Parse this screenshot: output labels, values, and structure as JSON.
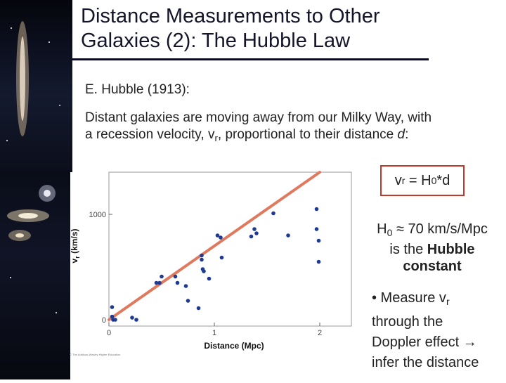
{
  "slide": {
    "title_line1": "Distance Measurements to Other",
    "title_line2": "Galaxies (2): The Hubble Law",
    "author_line": "E. Hubble (1913):",
    "desc_line1": "Distant galaxies are moving away from our Milky Way, with",
    "desc_pre": "a recession velocity, v",
    "desc_sub": "r",
    "desc_mid": ", proportional to their distance ",
    "desc_var": "d",
    "desc_end": ":"
  },
  "formula": {
    "v": "v",
    "v_sub": "r",
    "eq": " = H",
    "h_sub": "0",
    "rest": "*d"
  },
  "constant": {
    "h": "H",
    "h_sub": "0",
    "value": " ≈ 70 km/s/Mpc",
    "line2_pre": "is the ",
    "line2_bold": "Hubble",
    "line3_bold": "constant"
  },
  "bullet": {
    "line1_pre": "• Measure v",
    "line1_sub": "r",
    "line2": "through the",
    "line3": "Doppler effect →",
    "line4": "infer the distance"
  },
  "chart_data": {
    "type": "scatter",
    "xlabel": "Distance (Mpc)",
    "ylabel": "vr (km/s)",
    "xlim": [
      0,
      2.3
    ],
    "ylim": [
      -60,
      1400
    ],
    "x_ticks": [
      0,
      1,
      2
    ],
    "x_tick_labels": [
      "0",
      "1",
      "2"
    ],
    "y_ticks": [
      0,
      1000
    ],
    "y_tick_labels": [
      "0",
      "1000"
    ],
    "credit": "© The Addison-Wesley Higher Education",
    "series": [
      {
        "x": [
          0.03,
          0.03,
          0.04,
          0.06,
          0.22,
          0.26,
          0.45,
          0.48,
          0.5,
          0.63,
          0.65,
          0.73,
          0.75,
          0.85,
          0.88,
          0.88,
          0.89,
          0.9,
          0.95,
          1.03,
          1.06,
          1.07,
          1.35,
          1.38,
          1.4,
          1.56,
          1.7,
          1.97,
          1.97,
          1.99,
          1.99
        ],
        "y": [
          120,
          30,
          0,
          0,
          20,
          0,
          350,
          350,
          410,
          410,
          350,
          320,
          180,
          110,
          570,
          610,
          480,
          460,
          390,
          800,
          780,
          590,
          790,
          860,
          820,
          1010,
          800,
          1050,
          860,
          750,
          550
        ]
      }
    ],
    "fit_line": {
      "x": [
        0,
        2
      ],
      "y": [
        0,
        1400
      ]
    }
  }
}
